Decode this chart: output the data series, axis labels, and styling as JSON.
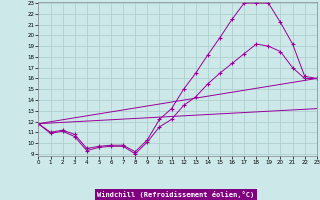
{
  "xlabel": "Windchill (Refroidissement éolien,°C)",
  "xlim": [
    0,
    23
  ],
  "ylim": [
    9,
    23
  ],
  "xticks": [
    0,
    1,
    2,
    3,
    4,
    5,
    6,
    7,
    8,
    9,
    10,
    11,
    12,
    13,
    14,
    15,
    16,
    17,
    18,
    19,
    20,
    21,
    22,
    23
  ],
  "yticks": [
    9,
    10,
    11,
    12,
    13,
    14,
    15,
    16,
    17,
    18,
    19,
    20,
    21,
    22,
    23
  ],
  "bg_color": "#cce8e8",
  "line_color": "#990099",
  "grid_color": "#aacccc",
  "xlabel_bg": "#800080",
  "curves": [
    {
      "x": [
        0,
        1,
        2,
        3,
        4,
        5,
        6,
        7,
        8,
        9,
        10,
        11,
        12,
        13,
        14,
        15,
        16,
        17,
        18,
        19,
        20,
        21,
        22,
        23
      ],
      "y": [
        11.8,
        10.9,
        11.1,
        10.6,
        9.3,
        9.6,
        9.7,
        9.7,
        9.0,
        10.1,
        11.5,
        12.2,
        13.5,
        14.3,
        15.5,
        16.5,
        17.4,
        18.3,
        19.2,
        19.0,
        18.5,
        17.0,
        16.0,
        16.0
      ],
      "has_markers": true
    },
    {
      "x": [
        0,
        1,
        2,
        3,
        4,
        5,
        6,
        7,
        8,
        9,
        10,
        11,
        12,
        13,
        14,
        15,
        16,
        17,
        18,
        19,
        20,
        21,
        22,
        23
      ],
      "y": [
        11.8,
        11.0,
        11.2,
        10.8,
        9.5,
        9.7,
        9.8,
        9.8,
        9.2,
        10.3,
        12.2,
        13.2,
        15.0,
        16.5,
        18.2,
        19.8,
        21.5,
        23.0,
        23.0,
        23.0,
        21.2,
        19.2,
        16.2,
        16.0
      ],
      "has_markers": true
    },
    {
      "x": [
        0,
        23
      ],
      "y": [
        11.8,
        16.0
      ],
      "has_markers": false
    },
    {
      "x": [
        0,
        23
      ],
      "y": [
        11.8,
        13.2
      ],
      "has_markers": false
    }
  ]
}
